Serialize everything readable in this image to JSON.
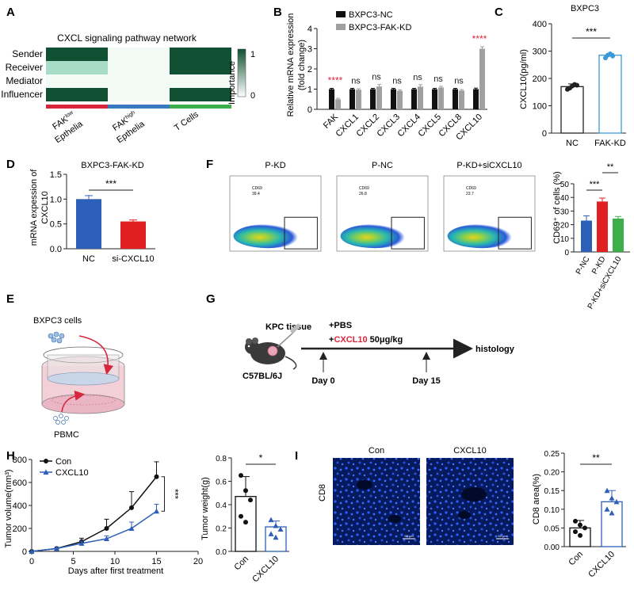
{
  "panels": {
    "A": {
      "letter": "A",
      "title": "CXCL signaling pathway network",
      "rows": [
        "Sender",
        "Receiver",
        "Mediator",
        "Influencer"
      ],
      "legend_title": "Importance",
      "legend_max": "1",
      "legend_min": "0",
      "groups": [
        {
          "main": "FAK",
          "sup": "low",
          "line2": "Epthelia",
          "color": "#d7263d"
        },
        {
          "main": "FAK",
          "sup": "high",
          "line2": "Epthelia",
          "color": "#3a78c2"
        },
        {
          "main": "T Cells",
          "sup": "",
          "line2": "",
          "color": "#3cae4a"
        }
      ],
      "heatmap": [
        [
          1,
          0,
          1
        ],
        [
          0.35,
          0,
          1
        ],
        [
          0,
          0,
          0
        ],
        [
          1,
          0,
          1
        ]
      ],
      "colors": {
        "high": "#0f5132",
        "low": "#a9dcc8",
        "zero": "#f3fbf7"
      }
    },
    "B": {
      "letter": "B",
      "ylabel_line1": "Relative mRNA expression",
      "ylabel_line2": "(fold change)",
      "yticks": [
        "0",
        "1",
        "2",
        "3",
        "4"
      ],
      "legend": [
        "BXPC3-NC",
        "BXPC3-FAK-KD"
      ],
      "series_colors": [
        "#111111",
        "#a0a0a0"
      ]
    },
    "C": {
      "letter": "C",
      "title": "BXPC3",
      "ylabel": "CXCL10(pg/ml)",
      "yticks": [
        "0",
        "100",
        "200",
        "300",
        "400"
      ],
      "sig": "***",
      "categories": [
        "NC",
        "FAK-KD"
      ]
    },
    "D": {
      "letter": "D",
      "title": "BXPC3-FAK-KD",
      "ylabel_line1": "mRNA expession of",
      "ylabel_line2": "CXCL10",
      "yticks": [
        "0.0",
        "0.5",
        "1.0",
        "1.5"
      ],
      "sig": "***",
      "categories": [
        "NC",
        "si-CXCL10"
      ]
    },
    "F": {
      "letter": "F",
      "plots": [
        {
          "title": "P-KD",
          "gate_label": "CD69",
          "gate_value": "39.4"
        },
        {
          "title": "P-NC",
          "gate_label": "CD69",
          "gate_value": "26.8"
        },
        {
          "title": "P-KD+siCXCL10",
          "gate_label": "CD69",
          "gate_value": "23.7"
        }
      ],
      "bar_ylabel": "CD69⁺ of cells (%)",
      "yticks": [
        "0",
        "10",
        "20",
        "30",
        "40",
        "50"
      ],
      "sig1": "***",
      "sig2": "**",
      "categories": [
        "P-NC",
        "P-KD",
        "P-KD+siCXCL10"
      ]
    },
    "E": {
      "letter": "E",
      "cells_label": "BXPC3 cells",
      "pbmc_label": "PBMC"
    },
    "G": {
      "letter": "G",
      "tissue_label": "KPC tissue",
      "treat1": "+PBS",
      "treat2_prefix": "+",
      "treat2_drug": "CXCL10",
      "treat2_dose": " 50μg/kg",
      "mouse_label": "C57BL/6J",
      "day0": "Day 0",
      "day15": "Day 15",
      "endpoint": "histology"
    },
    "H": {
      "letter": "H",
      "ylabel": "Tumor volume(mm³)",
      "xlabel": "Days after first treatment",
      "yticks": [
        "0",
        "200",
        "400",
        "600",
        "800"
      ],
      "xticks": [
        "0",
        "5",
        "10",
        "15",
        "20"
      ],
      "legend": [
        "Con",
        "CXCL10"
      ],
      "sig": "***",
      "weight_ylabel": "Tumor weight(g)",
      "weight_yticks": [
        "0.0",
        "0.2",
        "0.4",
        "0.6",
        "0.8"
      ],
      "weight_sig": "*",
      "weight_categories": [
        "Con",
        "CXCL10"
      ]
    },
    "I": {
      "letter": "I",
      "row_label": "CD8",
      "image_titles": [
        "Con",
        "CXCL10"
      ],
      "scale_bar": "50 μm",
      "ylabel": "CD8 area(%)",
      "yticks": [
        "0.00",
        "0.05",
        "0.10",
        "0.15",
        "0.20",
        "0.25"
      ],
      "sig": "**",
      "categories": [
        "Con",
        "CXCL10"
      ]
    }
  },
  "chart_data": [
    {
      "type": "bar",
      "panel": "B",
      "categories": [
        "FAK",
        "CXCL1",
        "CXCL2",
        "CXCL3",
        "CXCL4",
        "CXCL5",
        "CXCL8",
        "CXCL10"
      ],
      "series": [
        {
          "name": "BXPC3-NC",
          "values": [
            1,
            1,
            1,
            1,
            1,
            1,
            1,
            1
          ],
          "errors": [
            0.04,
            0.04,
            0.04,
            0.04,
            0.04,
            0.04,
            0.04,
            0.05
          ]
        },
        {
          "name": "BXPC3-FAK-KD",
          "values": [
            0.5,
            0.97,
            1.13,
            0.92,
            1.12,
            1.08,
            0.93,
            3.0
          ],
          "errors": [
            0.05,
            0.05,
            0.1,
            0.05,
            0.1,
            0.06,
            0.05,
            0.1
          ]
        }
      ],
      "annotations": [
        "****",
        "ns",
        "ns",
        "ns",
        "ns",
        "ns",
        "ns",
        "****"
      ],
      "ylim": [
        0,
        4
      ]
    },
    {
      "type": "bar",
      "panel": "C",
      "categories": [
        "NC",
        "FAK-KD"
      ],
      "values": [
        170,
        285
      ],
      "errors": [
        10,
        6
      ],
      "points": [
        [
          160,
          165,
          172,
          178,
          175
        ],
        [
          275,
          285,
          290,
          282
        ]
      ],
      "ylim": [
        0,
        400
      ]
    },
    {
      "type": "bar",
      "panel": "D",
      "categories": [
        "NC",
        "si-CXCL10"
      ],
      "values": [
        1.0,
        0.55
      ],
      "errors": [
        0.07,
        0.03
      ],
      "ylim": [
        0,
        1.5
      ]
    },
    {
      "type": "bar",
      "panel": "F",
      "categories": [
        "P-NC",
        "P-KD",
        "P-KD+siCXCL10"
      ],
      "values": [
        23,
        37,
        24.5
      ],
      "errors": [
        3.5,
        2.5,
        1.5
      ],
      "ylim": [
        0,
        50
      ]
    },
    {
      "type": "line",
      "panel": "H",
      "x": [
        0,
        3,
        6,
        9,
        12,
        15
      ],
      "series": [
        {
          "name": "Con",
          "values": [
            0,
            25,
            85,
            200,
            380,
            650
          ],
          "errors": [
            0,
            8,
            30,
            80,
            140,
            130
          ]
        },
        {
          "name": "CXCL10",
          "values": [
            0,
            25,
            70,
            110,
            200,
            350
          ],
          "errors": [
            0,
            6,
            20,
            25,
            55,
            60
          ]
        }
      ],
      "xlim": [
        0,
        20
      ],
      "ylim": [
        0,
        800
      ]
    },
    {
      "type": "bar",
      "panel": "H-weight",
      "categories": [
        "Con",
        "CXCL10"
      ],
      "values": [
        0.47,
        0.21
      ],
      "errors": [
        0.17,
        0.05
      ],
      "points": [
        [
          0.65,
          0.52,
          0.44,
          0.3,
          0.25
        ],
        [
          0.27,
          0.22,
          0.19,
          0.15,
          0.12
        ]
      ],
      "ylim": [
        0,
        0.8
      ]
    },
    {
      "type": "bar",
      "panel": "I",
      "categories": [
        "Con",
        "CXCL10"
      ],
      "values": [
        0.05,
        0.12
      ],
      "errors": [
        0.02,
        0.03
      ],
      "points": [
        [
          0.068,
          0.058,
          0.05,
          0.04,
          0.03
        ],
        [
          0.15,
          0.13,
          0.12,
          0.1,
          0.09
        ]
      ],
      "ylim": [
        0,
        0.25
      ]
    }
  ]
}
